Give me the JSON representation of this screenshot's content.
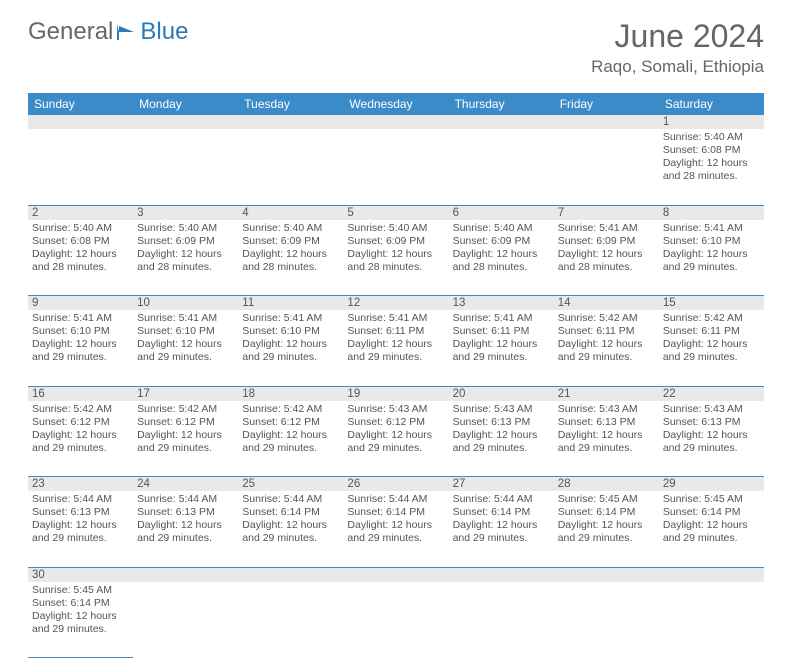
{
  "brand": {
    "part1": "General",
    "part2": "Blue"
  },
  "header": {
    "month_title": "June 2024",
    "location": "Raqo, Somali, Ethiopia"
  },
  "colors": {
    "header_bg": "#3b8bc9",
    "header_text": "#ffffff",
    "daynum_bg": "#e9e9e9",
    "border": "#3b8bc9",
    "text": "#555555",
    "title_text": "#666666"
  },
  "day_headers": [
    "Sunday",
    "Monday",
    "Tuesday",
    "Wednesday",
    "Thursday",
    "Friday",
    "Saturday"
  ],
  "weeks": [
    {
      "nums": [
        "",
        "",
        "",
        "",
        "",
        "",
        "1"
      ],
      "cells": [
        null,
        null,
        null,
        null,
        null,
        null,
        {
          "sunrise": "Sunrise: 5:40 AM",
          "sunset": "Sunset: 6:08 PM",
          "daylight1": "Daylight: 12 hours",
          "daylight2": "and 28 minutes."
        }
      ]
    },
    {
      "nums": [
        "2",
        "3",
        "4",
        "5",
        "6",
        "7",
        "8"
      ],
      "cells": [
        {
          "sunrise": "Sunrise: 5:40 AM",
          "sunset": "Sunset: 6:08 PM",
          "daylight1": "Daylight: 12 hours",
          "daylight2": "and 28 minutes."
        },
        {
          "sunrise": "Sunrise: 5:40 AM",
          "sunset": "Sunset: 6:09 PM",
          "daylight1": "Daylight: 12 hours",
          "daylight2": "and 28 minutes."
        },
        {
          "sunrise": "Sunrise: 5:40 AM",
          "sunset": "Sunset: 6:09 PM",
          "daylight1": "Daylight: 12 hours",
          "daylight2": "and 28 minutes."
        },
        {
          "sunrise": "Sunrise: 5:40 AM",
          "sunset": "Sunset: 6:09 PM",
          "daylight1": "Daylight: 12 hours",
          "daylight2": "and 28 minutes."
        },
        {
          "sunrise": "Sunrise: 5:40 AM",
          "sunset": "Sunset: 6:09 PM",
          "daylight1": "Daylight: 12 hours",
          "daylight2": "and 28 minutes."
        },
        {
          "sunrise": "Sunrise: 5:41 AM",
          "sunset": "Sunset: 6:09 PM",
          "daylight1": "Daylight: 12 hours",
          "daylight2": "and 28 minutes."
        },
        {
          "sunrise": "Sunrise: 5:41 AM",
          "sunset": "Sunset: 6:10 PM",
          "daylight1": "Daylight: 12 hours",
          "daylight2": "and 29 minutes."
        }
      ]
    },
    {
      "nums": [
        "9",
        "10",
        "11",
        "12",
        "13",
        "14",
        "15"
      ],
      "cells": [
        {
          "sunrise": "Sunrise: 5:41 AM",
          "sunset": "Sunset: 6:10 PM",
          "daylight1": "Daylight: 12 hours",
          "daylight2": "and 29 minutes."
        },
        {
          "sunrise": "Sunrise: 5:41 AM",
          "sunset": "Sunset: 6:10 PM",
          "daylight1": "Daylight: 12 hours",
          "daylight2": "and 29 minutes."
        },
        {
          "sunrise": "Sunrise: 5:41 AM",
          "sunset": "Sunset: 6:10 PM",
          "daylight1": "Daylight: 12 hours",
          "daylight2": "and 29 minutes."
        },
        {
          "sunrise": "Sunrise: 5:41 AM",
          "sunset": "Sunset: 6:11 PM",
          "daylight1": "Daylight: 12 hours",
          "daylight2": "and 29 minutes."
        },
        {
          "sunrise": "Sunrise: 5:41 AM",
          "sunset": "Sunset: 6:11 PM",
          "daylight1": "Daylight: 12 hours",
          "daylight2": "and 29 minutes."
        },
        {
          "sunrise": "Sunrise: 5:42 AM",
          "sunset": "Sunset: 6:11 PM",
          "daylight1": "Daylight: 12 hours",
          "daylight2": "and 29 minutes."
        },
        {
          "sunrise": "Sunrise: 5:42 AM",
          "sunset": "Sunset: 6:11 PM",
          "daylight1": "Daylight: 12 hours",
          "daylight2": "and 29 minutes."
        }
      ]
    },
    {
      "nums": [
        "16",
        "17",
        "18",
        "19",
        "20",
        "21",
        "22"
      ],
      "cells": [
        {
          "sunrise": "Sunrise: 5:42 AM",
          "sunset": "Sunset: 6:12 PM",
          "daylight1": "Daylight: 12 hours",
          "daylight2": "and 29 minutes."
        },
        {
          "sunrise": "Sunrise: 5:42 AM",
          "sunset": "Sunset: 6:12 PM",
          "daylight1": "Daylight: 12 hours",
          "daylight2": "and 29 minutes."
        },
        {
          "sunrise": "Sunrise: 5:42 AM",
          "sunset": "Sunset: 6:12 PM",
          "daylight1": "Daylight: 12 hours",
          "daylight2": "and 29 minutes."
        },
        {
          "sunrise": "Sunrise: 5:43 AM",
          "sunset": "Sunset: 6:12 PM",
          "daylight1": "Daylight: 12 hours",
          "daylight2": "and 29 minutes."
        },
        {
          "sunrise": "Sunrise: 5:43 AM",
          "sunset": "Sunset: 6:13 PM",
          "daylight1": "Daylight: 12 hours",
          "daylight2": "and 29 minutes."
        },
        {
          "sunrise": "Sunrise: 5:43 AM",
          "sunset": "Sunset: 6:13 PM",
          "daylight1": "Daylight: 12 hours",
          "daylight2": "and 29 minutes."
        },
        {
          "sunrise": "Sunrise: 5:43 AM",
          "sunset": "Sunset: 6:13 PM",
          "daylight1": "Daylight: 12 hours",
          "daylight2": "and 29 minutes."
        }
      ]
    },
    {
      "nums": [
        "23",
        "24",
        "25",
        "26",
        "27",
        "28",
        "29"
      ],
      "cells": [
        {
          "sunrise": "Sunrise: 5:44 AM",
          "sunset": "Sunset: 6:13 PM",
          "daylight1": "Daylight: 12 hours",
          "daylight2": "and 29 minutes."
        },
        {
          "sunrise": "Sunrise: 5:44 AM",
          "sunset": "Sunset: 6:13 PM",
          "daylight1": "Daylight: 12 hours",
          "daylight2": "and 29 minutes."
        },
        {
          "sunrise": "Sunrise: 5:44 AM",
          "sunset": "Sunset: 6:14 PM",
          "daylight1": "Daylight: 12 hours",
          "daylight2": "and 29 minutes."
        },
        {
          "sunrise": "Sunrise: 5:44 AM",
          "sunset": "Sunset: 6:14 PM",
          "daylight1": "Daylight: 12 hours",
          "daylight2": "and 29 minutes."
        },
        {
          "sunrise": "Sunrise: 5:44 AM",
          "sunset": "Sunset: 6:14 PM",
          "daylight1": "Daylight: 12 hours",
          "daylight2": "and 29 minutes."
        },
        {
          "sunrise": "Sunrise: 5:45 AM",
          "sunset": "Sunset: 6:14 PM",
          "daylight1": "Daylight: 12 hours",
          "daylight2": "and 29 minutes."
        },
        {
          "sunrise": "Sunrise: 5:45 AM",
          "sunset": "Sunset: 6:14 PM",
          "daylight1": "Daylight: 12 hours",
          "daylight2": "and 29 minutes."
        }
      ]
    },
    {
      "nums": [
        "30",
        "",
        "",
        "",
        "",
        "",
        ""
      ],
      "cells": [
        {
          "sunrise": "Sunrise: 5:45 AM",
          "sunset": "Sunset: 6:14 PM",
          "daylight1": "Daylight: 12 hours",
          "daylight2": "and 29 minutes."
        },
        null,
        null,
        null,
        null,
        null,
        null
      ]
    }
  ]
}
